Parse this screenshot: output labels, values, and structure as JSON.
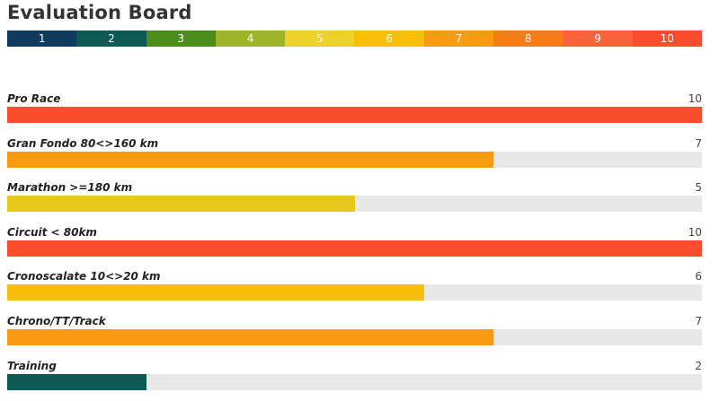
{
  "page": {
    "title": "Evaluation Board"
  },
  "scale": {
    "items": [
      {
        "label": "1",
        "color": "#0e3b5e"
      },
      {
        "label": "2",
        "color": "#0d5a52"
      },
      {
        "label": "3",
        "color": "#4c8c1b"
      },
      {
        "label": "4",
        "color": "#9db426"
      },
      {
        "label": "5",
        "color": "#ecd02b"
      },
      {
        "label": "6",
        "color": "#f9be0a"
      },
      {
        "label": "7",
        "color": "#f89a13"
      },
      {
        "label": "8",
        "color": "#f77c16"
      },
      {
        "label": "9",
        "color": "#f9633a"
      },
      {
        "label": "10",
        "color": "#fb4d2e"
      }
    ]
  },
  "chart_data": {
    "type": "bar",
    "orientation": "horizontal",
    "xlim": [
      0,
      10
    ],
    "categories": [
      "Pro Race",
      "Gran Fondo 80<>160 km",
      "Marathon >=180 km",
      "Circuit < 80km",
      "Cronoscalate 10<>20 km",
      "Chrono/TT/Track",
      "Training"
    ],
    "values": [
      10,
      7,
      5,
      10,
      6,
      7,
      2
    ],
    "value_labels": [
      "10",
      "7",
      "5",
      "10",
      "6",
      "7",
      "2"
    ],
    "colors": [
      "#fb4d2e",
      "#f89a13",
      "#e8c81c",
      "#fb4d2e",
      "#f9be0a",
      "#f89a13",
      "#0d5a52"
    ],
    "track_color": "#e8e8e8"
  }
}
